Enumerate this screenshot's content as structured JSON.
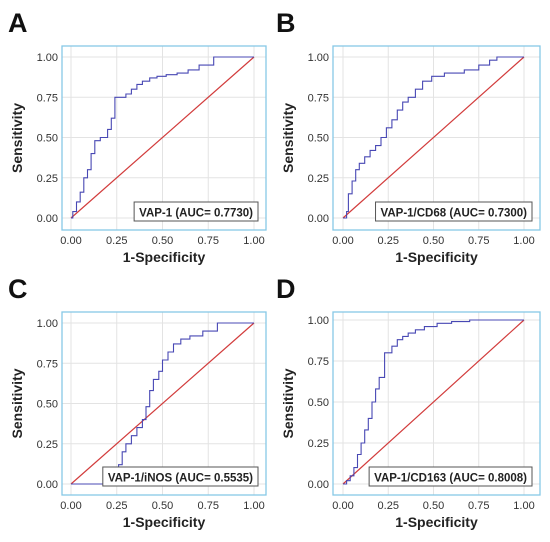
{
  "colors": {
    "roc_curve": "#4848b4",
    "reference_line": "#d23c3c",
    "plot_border": "#87c8e6",
    "gridline": "#e3e3e3",
    "box_border": "#555555"
  },
  "chart_data": [
    {
      "panel": "A",
      "type": "line",
      "xlabel": "1-Specificity",
      "ylabel": "Sensitivity",
      "xlim": [
        0,
        1
      ],
      "ylim": [
        0,
        1
      ],
      "x_ticks": [
        "0.00",
        "0.25",
        "0.50",
        "0.75",
        "1.00"
      ],
      "y_ticks": [
        "0.00",
        "0.25",
        "0.50",
        "0.75",
        "1.00"
      ],
      "grid": true,
      "annotation": "VAP-1 (AUC= 0.7730)",
      "annotation_position": "bottom-right",
      "series": [
        {
          "x": [
            0,
            0.01,
            0.01,
            0.03,
            0.03,
            0.05,
            0.05,
            0.07,
            0.07,
            0.09,
            0.09,
            0.11,
            0.11,
            0.13,
            0.13,
            0.16,
            0.16,
            0.2,
            0.2,
            0.22,
            0.22,
            0.24,
            0.24,
            0.3,
            0.3,
            0.33,
            0.33,
            0.36,
            0.36,
            0.39,
            0.39,
            0.43,
            0.43,
            0.47,
            0.47,
            0.52,
            0.52,
            0.58,
            0.58,
            0.64,
            0.64,
            0.7,
            0.7,
            0.78,
            0.78,
            1.0
          ],
          "y": [
            0,
            0,
            0.04,
            0.04,
            0.1,
            0.1,
            0.16,
            0.16,
            0.25,
            0.25,
            0.3,
            0.3,
            0.4,
            0.4,
            0.48,
            0.48,
            0.5,
            0.5,
            0.55,
            0.55,
            0.62,
            0.62,
            0.75,
            0.75,
            0.77,
            0.77,
            0.8,
            0.8,
            0.83,
            0.83,
            0.85,
            0.85,
            0.87,
            0.87,
            0.88,
            0.88,
            0.89,
            0.89,
            0.9,
            0.9,
            0.92,
            0.92,
            0.95,
            0.95,
            1.0,
            1.0
          ]
        },
        {
          "x": [
            0,
            1
          ],
          "y": [
            0,
            1
          ]
        }
      ]
    },
    {
      "panel": "B",
      "type": "line",
      "xlabel": "1-Specificity",
      "ylabel": "Sensitivity",
      "xlim": [
        0,
        1
      ],
      "ylim": [
        0,
        1
      ],
      "x_ticks": [
        "0.00",
        "0.25",
        "0.50",
        "0.75",
        "1.00"
      ],
      "y_ticks": [
        "0.00",
        "0.25",
        "0.50",
        "0.75",
        "1.00"
      ],
      "grid": true,
      "annotation": "VAP-1/CD68 (AUC= 0.7300)",
      "annotation_position": "bottom-right",
      "series": [
        {
          "x": [
            0,
            0.02,
            0.02,
            0.03,
            0.03,
            0.05,
            0.05,
            0.07,
            0.07,
            0.09,
            0.09,
            0.12,
            0.12,
            0.15,
            0.15,
            0.18,
            0.18,
            0.21,
            0.21,
            0.24,
            0.24,
            0.27,
            0.27,
            0.3,
            0.3,
            0.33,
            0.33,
            0.36,
            0.36,
            0.4,
            0.4,
            0.44,
            0.44,
            0.49,
            0.49,
            0.56,
            0.56,
            0.67,
            0.67,
            0.75,
            0.75,
            0.81,
            0.81,
            0.85,
            0.85,
            1.0
          ],
          "y": [
            0,
            0,
            0.04,
            0.04,
            0.15,
            0.15,
            0.23,
            0.23,
            0.3,
            0.3,
            0.34,
            0.34,
            0.38,
            0.38,
            0.42,
            0.42,
            0.45,
            0.45,
            0.5,
            0.5,
            0.56,
            0.56,
            0.61,
            0.61,
            0.67,
            0.67,
            0.72,
            0.72,
            0.75,
            0.75,
            0.8,
            0.8,
            0.85,
            0.85,
            0.88,
            0.88,
            0.9,
            0.9,
            0.92,
            0.92,
            0.95,
            0.95,
            0.98,
            0.98,
            1.0,
            1.0
          ]
        },
        {
          "x": [
            0,
            1
          ],
          "y": [
            0,
            1
          ]
        }
      ]
    },
    {
      "panel": "C",
      "type": "line",
      "xlabel": "1-Specificity",
      "ylabel": "Sensitivity",
      "xlim": [
        0,
        1
      ],
      "ylim": [
        0,
        1
      ],
      "x_ticks": [
        "0.00",
        "0.25",
        "0.50",
        "0.75",
        "1.00"
      ],
      "y_ticks": [
        "0.00",
        "0.25",
        "0.50",
        "0.75",
        "1.00"
      ],
      "grid": true,
      "annotation": "VAP-1/iNOS (AUC= 0.5535)",
      "annotation_position": "bottom-right",
      "series": [
        {
          "x": [
            0,
            0.23,
            0.23,
            0.26,
            0.26,
            0.28,
            0.28,
            0.3,
            0.3,
            0.33,
            0.33,
            0.36,
            0.36,
            0.39,
            0.39,
            0.41,
            0.41,
            0.43,
            0.43,
            0.45,
            0.45,
            0.48,
            0.48,
            0.5,
            0.5,
            0.53,
            0.53,
            0.56,
            0.56,
            0.6,
            0.6,
            0.65,
            0.65,
            0.72,
            0.72,
            0.8,
            0.8,
            0.9,
            0.9,
            1.0
          ],
          "y": [
            0,
            0,
            0.05,
            0.05,
            0.12,
            0.12,
            0.2,
            0.2,
            0.25,
            0.25,
            0.3,
            0.3,
            0.35,
            0.35,
            0.4,
            0.4,
            0.48,
            0.48,
            0.58,
            0.58,
            0.65,
            0.65,
            0.7,
            0.7,
            0.77,
            0.77,
            0.82,
            0.82,
            0.87,
            0.87,
            0.9,
            0.9,
            0.92,
            0.92,
            0.95,
            0.95,
            1.0,
            1.0,
            1.0,
            1.0
          ]
        },
        {
          "x": [
            0,
            1
          ],
          "y": [
            0,
            1
          ]
        }
      ]
    },
    {
      "panel": "D",
      "type": "line",
      "xlabel": "1-Specificity",
      "ylabel": "Sensitivity",
      "xlim": [
        0,
        1
      ],
      "ylim": [
        0,
        1
      ],
      "x_ticks": [
        "0.00",
        "0.25",
        "0.50",
        "0.75",
        "1.00"
      ],
      "y_ticks": [
        "0.00",
        "0.25",
        "0.50",
        "0.75",
        "1.00"
      ],
      "grid": true,
      "annotation": "VAP-1/CD163 (AUC= 0.8008)",
      "annotation_position": "bottom-right",
      "series": [
        {
          "x": [
            0,
            0.02,
            0.02,
            0.04,
            0.04,
            0.06,
            0.06,
            0.08,
            0.08,
            0.1,
            0.1,
            0.12,
            0.12,
            0.14,
            0.14,
            0.16,
            0.16,
            0.18,
            0.18,
            0.2,
            0.2,
            0.23,
            0.23,
            0.27,
            0.27,
            0.3,
            0.3,
            0.33,
            0.33,
            0.36,
            0.36,
            0.4,
            0.4,
            0.45,
            0.45,
            0.52,
            0.52,
            0.6,
            0.6,
            0.7,
            0.7,
            1.0
          ],
          "y": [
            0,
            0,
            0.02,
            0.02,
            0.05,
            0.05,
            0.1,
            0.1,
            0.18,
            0.18,
            0.25,
            0.25,
            0.33,
            0.33,
            0.4,
            0.4,
            0.5,
            0.5,
            0.58,
            0.58,
            0.65,
            0.65,
            0.8,
            0.8,
            0.84,
            0.84,
            0.88,
            0.88,
            0.9,
            0.9,
            0.92,
            0.92,
            0.94,
            0.94,
            0.96,
            0.96,
            0.98,
            0.98,
            0.99,
            0.99,
            1.0,
            1.0
          ]
        },
        {
          "x": [
            0,
            1
          ],
          "y": [
            0,
            1
          ]
        }
      ]
    }
  ]
}
